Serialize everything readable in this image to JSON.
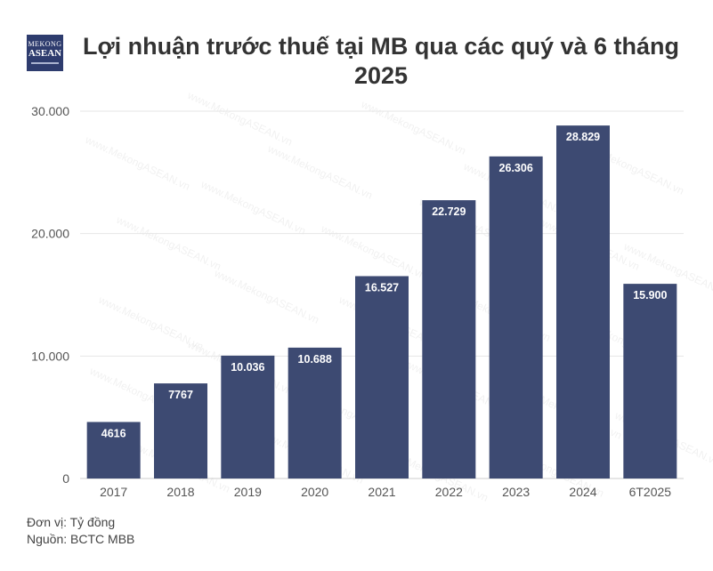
{
  "logo": {
    "line1": "MEKONG",
    "line2": "ASEAN"
  },
  "title": "Lợi nhuận trước thuế tại MB qua các quý và 6 tháng 2025",
  "watermark": "www.MekongASEAN.vn",
  "footer": {
    "unit": "Đơn vị: Tỷ đồng",
    "source": "Nguồn: BCTC MBB"
  },
  "colors": {
    "bar": "#3d4a72",
    "grid": "#e6e6e6",
    "axis_text": "#555555",
    "label_text": "#ffffff"
  },
  "chart_data": {
    "type": "bar",
    "categories": [
      "2017",
      "2018",
      "2019",
      "2020",
      "2021",
      "2022",
      "2023",
      "2024",
      "6T2025"
    ],
    "values": [
      4616,
      7767,
      10036,
      10688,
      16527,
      22729,
      26306,
      28829,
      15900
    ],
    "value_labels": [
      "4616",
      "7767",
      "10.036",
      "10.688",
      "16.527",
      "22.729",
      "26.306",
      "28.829",
      "15.900"
    ],
    "yticks": [
      0,
      10000,
      20000,
      30000
    ],
    "ytick_labels": [
      "0",
      "10.000",
      "20.000",
      "30.000"
    ],
    "ylim": [
      0,
      30000
    ],
    "grid": true,
    "legend": "none"
  }
}
